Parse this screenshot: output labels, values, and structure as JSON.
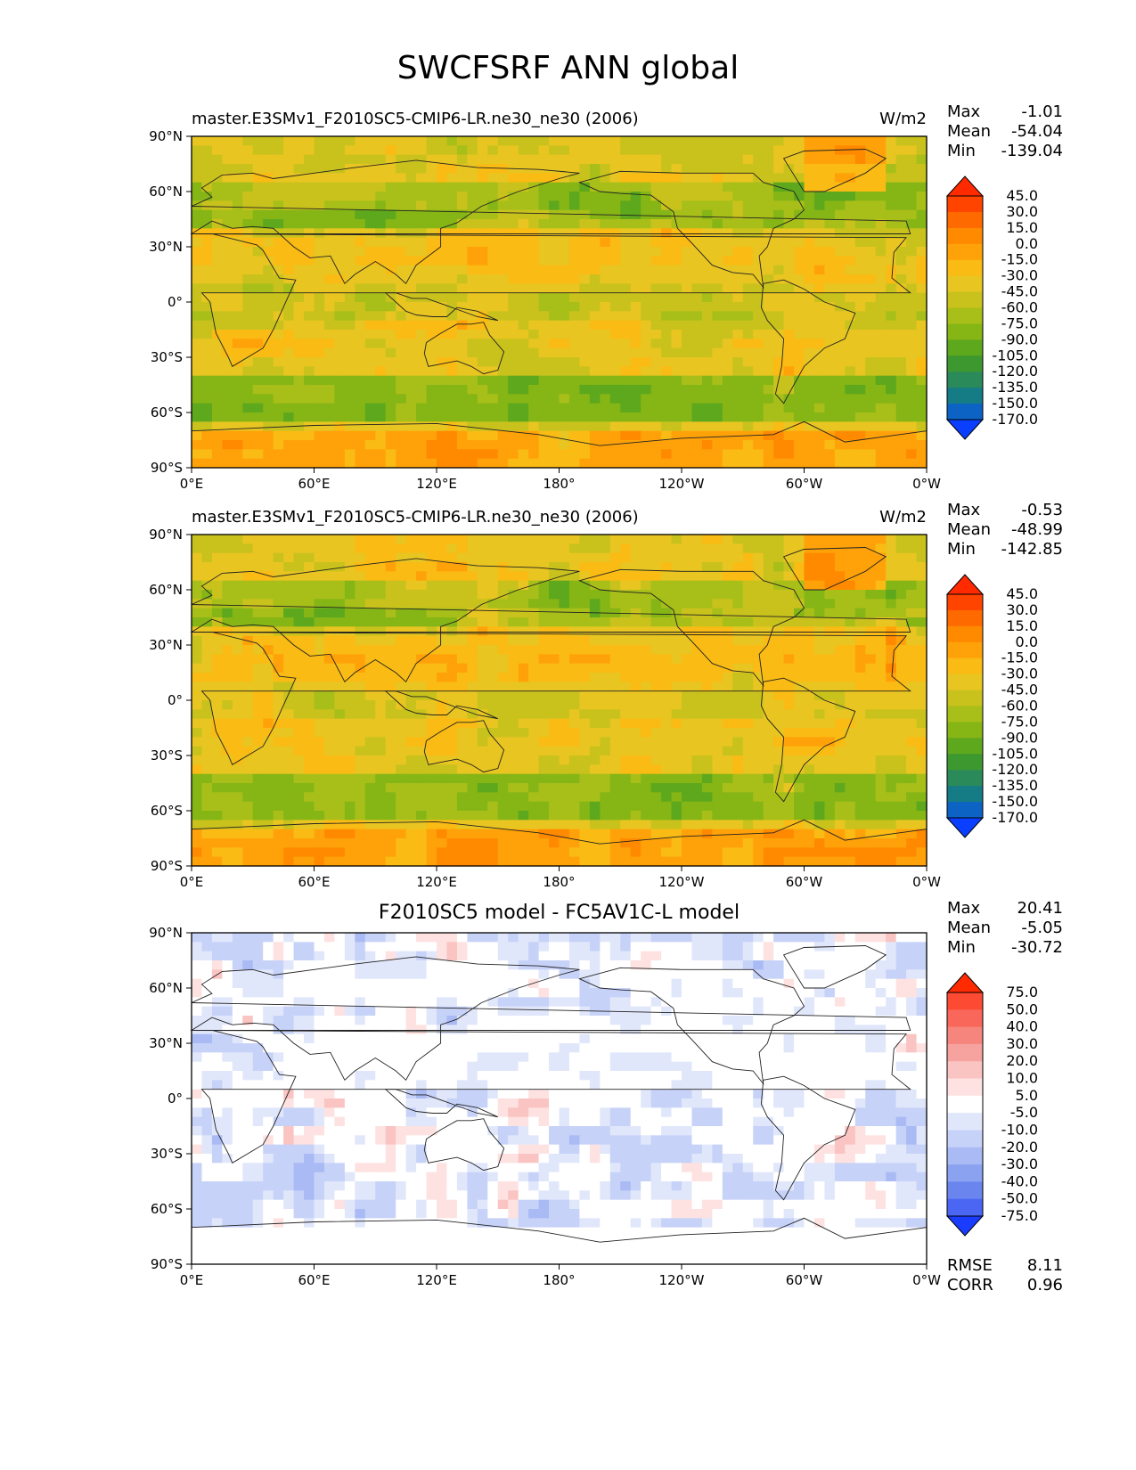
{
  "figure": {
    "title": "SWCFSRF ANN global"
  },
  "chart_data": [
    {
      "type": "heatmap",
      "title": "master.E3SMv1_F2010SC5-CMIP6-LR.ne30_ne30 (2006)",
      "units": "W/m2",
      "stats": [
        {
          "label": "Max",
          "value": "-1.01"
        },
        {
          "label": "Mean",
          "value": "-54.04"
        },
        {
          "label": "Min",
          "value": "-139.04"
        }
      ],
      "xticks": [
        "0°E",
        "60°E",
        "120°E",
        "180°",
        "120°W",
        "60°W",
        "0°W"
      ],
      "yticks": [
        "90°N",
        "60°N",
        "30°N",
        "0°",
        "30°S",
        "60°S",
        "90°S"
      ],
      "colorbar_levels": [
        "45.0",
        "30.0",
        "15.0",
        "0.0",
        "-15.0",
        "-30.0",
        "-45.0",
        "-60.0",
        "-75.0",
        "-90.0",
        "-105.0",
        "-120.0",
        "-135.0",
        "-150.0",
        "-170.0"
      ],
      "colorbar_colors": [
        "#ff2a00",
        "#ff4400",
        "#ff6a00",
        "#ff8a00",
        "#ffa20a",
        "#f9bb14",
        "#e8c521",
        "#c9c21d",
        "#a8bf19",
        "#86b516",
        "#5da81c",
        "#3d982f",
        "#2a8a5a",
        "#157c86",
        "#0c63c4",
        "#0a3fff"
      ]
    },
    {
      "type": "heatmap",
      "title": "master.E3SMv1_F2010SC5-CMIP6-LR.ne30_ne30 (2006)",
      "units": "W/m2",
      "stats": [
        {
          "label": "Max",
          "value": "-0.53"
        },
        {
          "label": "Mean",
          "value": "-48.99"
        },
        {
          "label": "Min",
          "value": "-142.85"
        }
      ],
      "xticks": [
        "0°E",
        "60°E",
        "120°E",
        "180°",
        "120°W",
        "60°W",
        "0°W"
      ],
      "yticks": [
        "90°N",
        "60°N",
        "30°N",
        "0°",
        "30°S",
        "60°S",
        "90°S"
      ],
      "colorbar_levels": [
        "45.0",
        "30.0",
        "15.0",
        "0.0",
        "-15.0",
        "-30.0",
        "-45.0",
        "-60.0",
        "-75.0",
        "-90.0",
        "-105.0",
        "-120.0",
        "-135.0",
        "-150.0",
        "-170.0"
      ],
      "colorbar_colors": [
        "#ff2a00",
        "#ff4400",
        "#ff6a00",
        "#ff8a00",
        "#ffa20a",
        "#f9bb14",
        "#e8c521",
        "#c9c21d",
        "#a8bf19",
        "#86b516",
        "#5da81c",
        "#3d982f",
        "#2a8a5a",
        "#157c86",
        "#0c63c4",
        "#0a3fff"
      ]
    },
    {
      "type": "heatmap",
      "title": "F2010SC5 model - FC5AV1C-L model",
      "units": "",
      "stats": [
        {
          "label": "Max",
          "value": "20.41"
        },
        {
          "label": "Mean",
          "value": "-5.05"
        },
        {
          "label": "Min",
          "value": "-30.72"
        }
      ],
      "footer_stats": [
        {
          "label": "RMSE",
          "value": "8.11"
        },
        {
          "label": "CORR",
          "value": "0.96"
        }
      ],
      "xticks": [
        "0°E",
        "60°E",
        "120°E",
        "180°",
        "120°W",
        "60°W",
        "0°W"
      ],
      "yticks": [
        "90°N",
        "60°N",
        "30°N",
        "0°",
        "30°S",
        "60°S",
        "90°S"
      ],
      "colorbar_levels": [
        "75.0",
        "50.0",
        "40.0",
        "30.0",
        "20.0",
        "10.0",
        "5.0",
        "-5.0",
        "-10.0",
        "-20.0",
        "-30.0",
        "-40.0",
        "-50.0",
        "-75.0"
      ],
      "colorbar_colors": [
        "#ff2a00",
        "#fd4a33",
        "#f9675a",
        "#f6857e",
        "#f6a3a0",
        "#f9c4c2",
        "#fde2e1",
        "#ffffff",
        "#e1e7fb",
        "#c7d2f8",
        "#a9baf4",
        "#8aa2f0",
        "#6a86ee",
        "#4a66f2",
        "#1a3cff"
      ]
    }
  ]
}
